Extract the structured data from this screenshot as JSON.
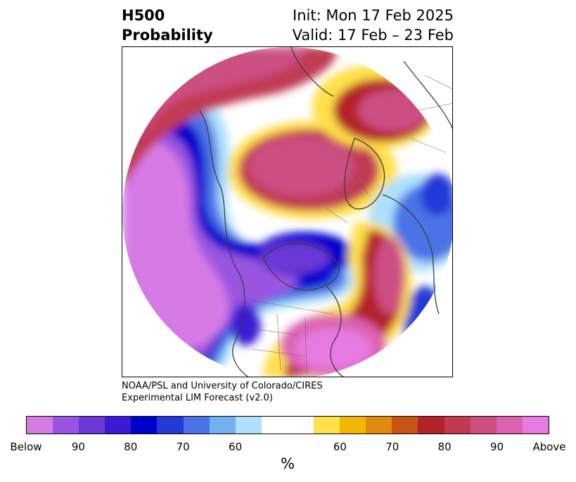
{
  "header": {
    "title_line1": "H500",
    "title_line2": "Probability",
    "init": "Init: Mon 17 Feb 2025",
    "valid": "Valid: 17 Feb – 23 Feb"
  },
  "credit": {
    "line1": "NOAA/PSL and University of Colorado/CIRES",
    "line2": "Experimental LIM Forecast (v2.0)"
  },
  "colorbar": {
    "unit": "%",
    "colors": [
      "#d67ae6",
      "#9a55e0",
      "#6b38d6",
      "#3a1ad4",
      "#0000cc",
      "#223bd8",
      "#4b73e6",
      "#72b0f0",
      "#aee0fb",
      "#ffffff",
      "#ffe04a",
      "#f3b600",
      "#e08a10",
      "#c85414",
      "#b4222a",
      "#c13a52",
      "#cc4f84",
      "#db62b0",
      "#e77ae0"
    ],
    "ticks": [
      "Below",
      "90",
      "80",
      "70",
      "60",
      "60",
      "70",
      "80",
      "90",
      "Above"
    ]
  },
  "map": {
    "features": [
      "below-normal-pacific-trough",
      "below-normal-eastern-canada-trough",
      "above-normal-alaska-ridge",
      "above-normal-arctic-ridge",
      "above-normal-atlantic-ridge",
      "below-normal-europe-trough"
    ]
  }
}
